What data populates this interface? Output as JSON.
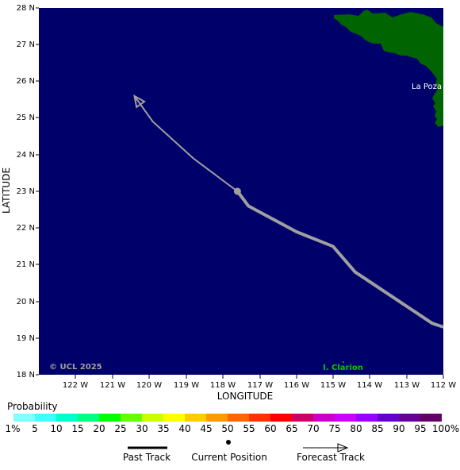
{
  "map": {
    "axes": {
      "x_title": "LONGITUDE",
      "y_title": "LATITUDE",
      "lat_ticks": [
        "28 N",
        "27 N",
        "26 N",
        "25 N",
        "24 N",
        "23 N",
        "22 N",
        "21 N",
        "20 N",
        "19 N",
        "18 N"
      ],
      "lon_ticks": [
        "122 W",
        "121 W",
        "120 W",
        "119 W",
        "118 W",
        "117 W",
        "116 W",
        "115 W",
        "114 W",
        "113 W",
        "112 W"
      ],
      "lat_range": [
        18,
        28
      ],
      "lon_range": [
        -123,
        -112
      ]
    },
    "ocean_color": "#00006b",
    "land_color": "#006400",
    "track_color": "#a0a0a0",
    "labels": {
      "place_la_poza": "La Poza",
      "island_clarion": "I. Clarion",
      "copyright": "© UCL 2025"
    },
    "track": {
      "past": [
        [
          -112,
          19.3
        ],
        [
          -112.3,
          19.4
        ],
        [
          -114.4,
          20.8
        ],
        [
          -115,
          21.5
        ],
        [
          -116,
          21.9
        ],
        [
          -117.3,
          22.6
        ],
        [
          -117.6,
          23
        ]
      ],
      "current": [
        -117.6,
        23
      ],
      "forecast": [
        [
          -117.6,
          23
        ],
        [
          -118.8,
          23.9
        ],
        [
          -119.9,
          24.9
        ],
        [
          -120.4,
          25.6
        ]
      ]
    }
  },
  "legend": {
    "probability_title": "Probability",
    "probability_labels": [
      "1%",
      "5",
      "10",
      "15",
      "20",
      "25",
      "30",
      "35",
      "40",
      "45",
      "50",
      "55",
      "60",
      "65",
      "70",
      "75",
      "80",
      "85",
      "90",
      "95",
      "100%"
    ],
    "probability_colors": [
      "#80ffff",
      "#40ffff",
      "#00ffcc",
      "#00ff80",
      "#00ff00",
      "#66ff00",
      "#ccff00",
      "#ffff00",
      "#ffcc00",
      "#ff9900",
      "#ff6600",
      "#ff3300",
      "#ff0000",
      "#cc0066",
      "#cc00cc",
      "#cc00ff",
      "#9900ff",
      "#6600cc",
      "#660099",
      "#660066"
    ],
    "past_track": "Past Track",
    "current_position": "Current Position",
    "forecast_track": "Forecast Track"
  }
}
